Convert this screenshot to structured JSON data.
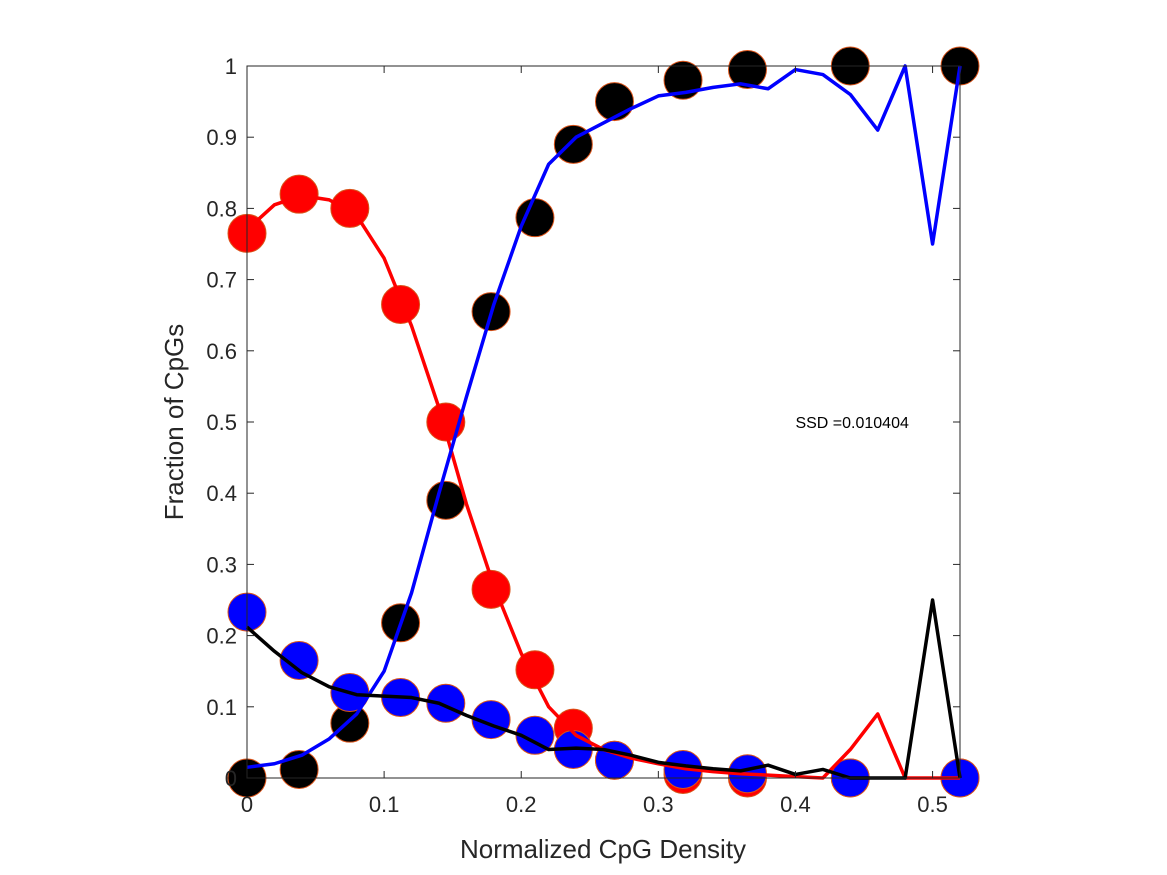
{
  "chart_data": {
    "type": "scatter",
    "title": "",
    "xlabel": "Normalized CpG Density",
    "ylabel": "Fraction of CpGs",
    "xlim": [
      0,
      0.52
    ],
    "ylim": [
      0,
      1
    ],
    "xticks": [
      "0",
      "0.1",
      "0.2",
      "0.3",
      "0.4",
      "0.5"
    ],
    "xtick_values": [
      0,
      0.1,
      0.2,
      0.3,
      0.4,
      0.5
    ],
    "yticks": [
      "0",
      "0.1",
      "0.2",
      "0.3",
      "0.4",
      "0.5",
      "0.6",
      "0.7",
      "0.8",
      "0.9",
      "1"
    ],
    "ytick_values": [
      0,
      0.1,
      0.2,
      0.3,
      0.4,
      0.5,
      0.6,
      0.7,
      0.8,
      0.9,
      1
    ],
    "grid": false,
    "box": true,
    "annotation": {
      "text": "SSD =0.010404",
      "x": 0.4,
      "y": 0.5
    },
    "point_series": [
      {
        "color": "#ff0000",
        "x": [
          0,
          0.038,
          0.075,
          0.112,
          0.145,
          0.178,
          0.21,
          0.238,
          0.268,
          0.318,
          0.365,
          0.44,
          0.52
        ],
        "y": [
          0.765,
          0.82,
          0.8,
          0.665,
          0.5,
          0.265,
          0.152,
          0.07,
          0.025,
          0.005,
          0.0,
          0.0,
          0.0
        ]
      },
      {
        "color": "#000000",
        "x": [
          0,
          0.038,
          0.075,
          0.112,
          0.145,
          0.178,
          0.21,
          0.238,
          0.268,
          0.318,
          0.365,
          0.44,
          0.52
        ],
        "y": [
          0.0,
          0.012,
          0.077,
          0.218,
          0.39,
          0.655,
          0.787,
          0.89,
          0.95,
          0.98,
          0.995,
          1.0,
          1.0
        ]
      },
      {
        "color": "#0000ff",
        "x": [
          0,
          0.038,
          0.075,
          0.112,
          0.145,
          0.178,
          0.21,
          0.238,
          0.268,
          0.318,
          0.365,
          0.44,
          0.52
        ],
        "y": [
          0.233,
          0.165,
          0.12,
          0.113,
          0.105,
          0.082,
          0.06,
          0.04,
          0.025,
          0.012,
          0.006,
          0.0,
          0.0
        ]
      }
    ],
    "line_series": [
      {
        "color": "#ff0000",
        "x": [
          0,
          0.02,
          0.04,
          0.06,
          0.08,
          0.1,
          0.12,
          0.14,
          0.16,
          0.18,
          0.2,
          0.22,
          0.24,
          0.26,
          0.28,
          0.3,
          0.32,
          0.34,
          0.36,
          0.38,
          0.4,
          0.42,
          0.44,
          0.46,
          0.48,
          0.5,
          0.52
        ],
        "y": [
          0.77,
          0.805,
          0.818,
          0.812,
          0.79,
          0.73,
          0.635,
          0.52,
          0.385,
          0.27,
          0.175,
          0.1,
          0.06,
          0.04,
          0.028,
          0.02,
          0.013,
          0.009,
          0.006,
          0.004,
          0.002,
          0.0,
          0.04,
          0.09,
          0.0,
          0.0,
          0.0
        ]
      },
      {
        "color": "#0000ff",
        "x": [
          0,
          0.02,
          0.04,
          0.06,
          0.08,
          0.1,
          0.12,
          0.14,
          0.16,
          0.18,
          0.2,
          0.22,
          0.24,
          0.26,
          0.28,
          0.3,
          0.32,
          0.34,
          0.36,
          0.38,
          0.4,
          0.42,
          0.44,
          0.46,
          0.48,
          0.5,
          0.52
        ],
        "y": [
          0.015,
          0.02,
          0.032,
          0.055,
          0.09,
          0.15,
          0.26,
          0.4,
          0.535,
          0.665,
          0.775,
          0.862,
          0.9,
          0.92,
          0.94,
          0.958,
          0.963,
          0.97,
          0.975,
          0.968,
          0.995,
          0.988,
          0.96,
          0.91,
          1.0,
          0.75,
          1.0
        ]
      },
      {
        "color": "#000000",
        "x": [
          0,
          0.02,
          0.04,
          0.06,
          0.08,
          0.1,
          0.12,
          0.14,
          0.16,
          0.18,
          0.2,
          0.22,
          0.24,
          0.26,
          0.28,
          0.3,
          0.32,
          0.34,
          0.36,
          0.38,
          0.4,
          0.42,
          0.44,
          0.46,
          0.48,
          0.5,
          0.52
        ],
        "y": [
          0.212,
          0.178,
          0.148,
          0.128,
          0.117,
          0.115,
          0.113,
          0.105,
          0.088,
          0.073,
          0.06,
          0.04,
          0.042,
          0.04,
          0.032,
          0.022,
          0.017,
          0.013,
          0.01,
          0.018,
          0.005,
          0.012,
          0.0,
          0.0,
          0.0,
          0.25,
          0.0
        ]
      }
    ]
  }
}
